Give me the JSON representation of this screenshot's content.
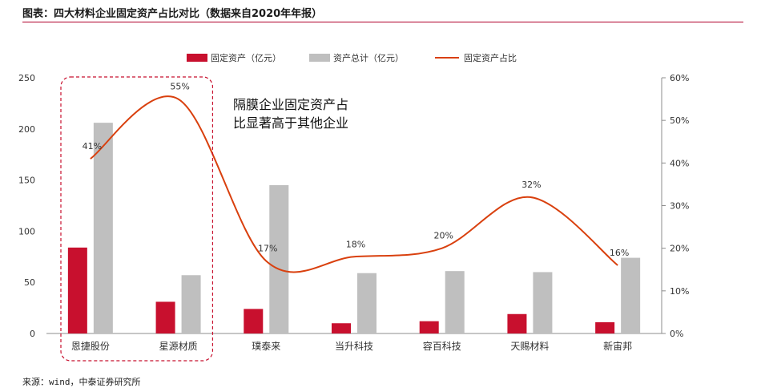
{
  "header": {
    "title": "图表：四大材料企业固定资产占比对比（数据来自2020年年报）"
  },
  "footer": {
    "source": "来源：wind，中泰证券研究所"
  },
  "annotation": {
    "lines": [
      "隔膜企业固定资产占",
      "比显著高于其他企业"
    ]
  },
  "colors": {
    "fixed_assets": "#c8102e",
    "total_assets": "#bfbfbf",
    "ratio_line": "#d9400e",
    "highlight_box": "#c8102e"
  },
  "chart_data": {
    "type": "bar",
    "categories": [
      "恩捷股份",
      "星源材质",
      "璞泰来",
      "当升科技",
      "容百科技",
      "天赐材料",
      "新宙邦"
    ],
    "series": [
      {
        "name": "固定资产（亿元）",
        "type": "bar",
        "axis": "left",
        "values": [
          84,
          31,
          24,
          10,
          12,
          19,
          11
        ]
      },
      {
        "name": "资产总计（亿元）",
        "type": "bar",
        "axis": "left",
        "values": [
          206,
          57,
          145,
          59,
          61,
          60,
          74
        ]
      },
      {
        "name": "固定资产占比",
        "type": "line",
        "axis": "right",
        "values": [
          0.41,
          0.55,
          0.17,
          0.18,
          0.2,
          0.32,
          0.16
        ],
        "labels": [
          "41%",
          "55%",
          "17%",
          "18%",
          "20%",
          "32%",
          "16%"
        ]
      }
    ],
    "ylim": [
      0,
      250
    ],
    "y_ticks": [
      "0",
      "50",
      "100",
      "150",
      "200",
      "250"
    ],
    "y2lim": [
      0,
      0.6
    ],
    "y2_ticks": [
      "0%",
      "10%",
      "20%",
      "30%",
      "40%",
      "50%",
      "60%"
    ],
    "legend_position": "top-center",
    "highlighted_categories": [
      "恩捷股份",
      "星源材质"
    ],
    "grid": false
  }
}
